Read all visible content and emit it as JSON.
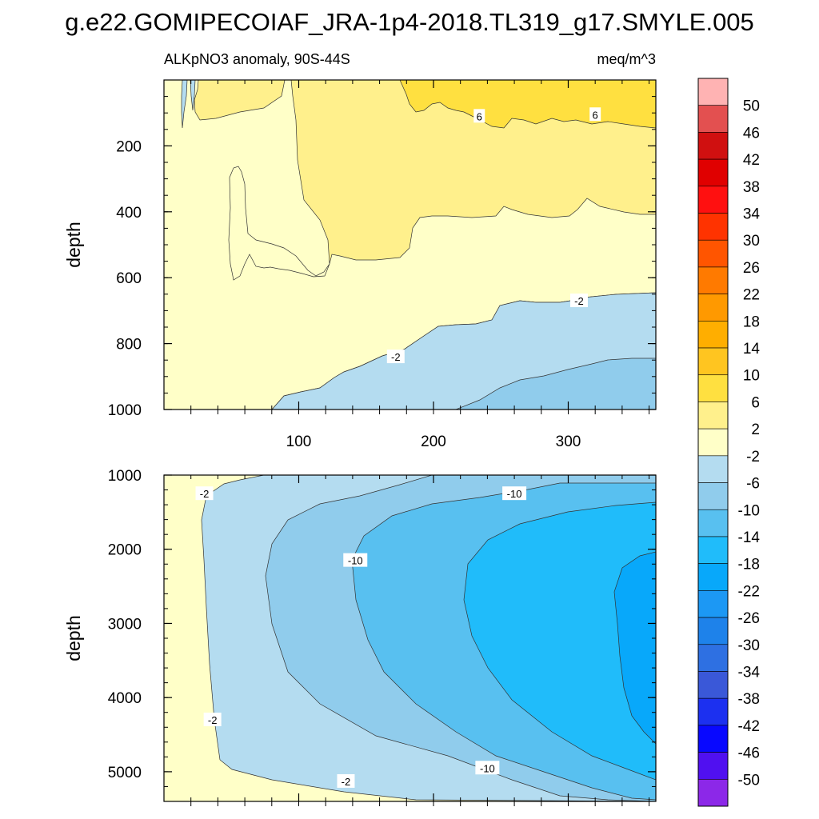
{
  "title": "g.e22.GOMIPECOIAF_JRA-1p4-2018.TL319_g17.SMYLE.005",
  "chart_data": {
    "type": "contour",
    "variable": "ALKpNO3 anomaly, 90S-44S",
    "units": "meq/m^3",
    "xlabel": "",
    "xlim": [
      0,
      365
    ],
    "x_ticks": [
      "100",
      "200",
      "300"
    ],
    "x_tick_values": [
      100,
      200,
      300
    ],
    "panels": [
      {
        "name": "upper",
        "ylabel": "depth",
        "ylim": [
          0,
          1000
        ],
        "y_ticks": [
          "200",
          "400",
          "600",
          "800",
          "1000"
        ],
        "y_tick_values": [
          200,
          400,
          600,
          800,
          1000
        ],
        "contour_labels": [
          {
            "text": "6",
            "x": 234,
            "y": 110
          },
          {
            "text": "6",
            "x": 320,
            "y": 105
          },
          {
            "text": "-2",
            "x": 308,
            "y": 670
          },
          {
            "text": "-2",
            "x": 172,
            "y": 840
          }
        ]
      },
      {
        "name": "lower",
        "ylabel": "depth",
        "ylim": [
          1000,
          5400
        ],
        "y_ticks": [
          "1000",
          "2000",
          "3000",
          "4000",
          "5000"
        ],
        "y_tick_values": [
          1000,
          2000,
          3000,
          4000,
          5000
        ],
        "contour_labels": [
          {
            "text": "-2",
            "x": 30,
            "y": 1250
          },
          {
            "text": "-10",
            "x": 260,
            "y": 1250
          },
          {
            "text": "-10",
            "x": 142,
            "y": 2150
          },
          {
            "text": "-2",
            "x": 36,
            "y": 4300
          },
          {
            "text": "-10",
            "x": 240,
            "y": 4950
          },
          {
            "text": "-2",
            "x": 135,
            "y": 5130
          }
        ]
      }
    ],
    "colorbar": {
      "levels": [
        "50",
        "46",
        "42",
        "38",
        "34",
        "30",
        "26",
        "22",
        "18",
        "14",
        "10",
        "6",
        "2",
        "-2",
        "-6",
        "-10",
        "-14",
        "-18",
        "-22",
        "-26",
        "-30",
        "-34",
        "-38",
        "-42",
        "-46",
        "-50"
      ],
      "colors": [
        "#FFB3B3",
        "#E35050",
        "#D01010",
        "#E00000",
        "#FF1010",
        "#FF3300",
        "#FF5500",
        "#FF7A00",
        "#FF9900",
        "#FFAE00",
        "#FFC520",
        "#FFE040",
        "#FFF08C",
        "#FFFFC8",
        "#B4DCF0",
        "#90CCEC",
        "#58C0F0",
        "#20BCFA",
        "#08A8FA",
        "#1C98F4",
        "#1E82EA",
        "#2E70E2",
        "#3A58D8",
        "#1C30F0",
        "#0808FF",
        "#5010F0",
        "#8C28E8"
      ]
    }
  }
}
